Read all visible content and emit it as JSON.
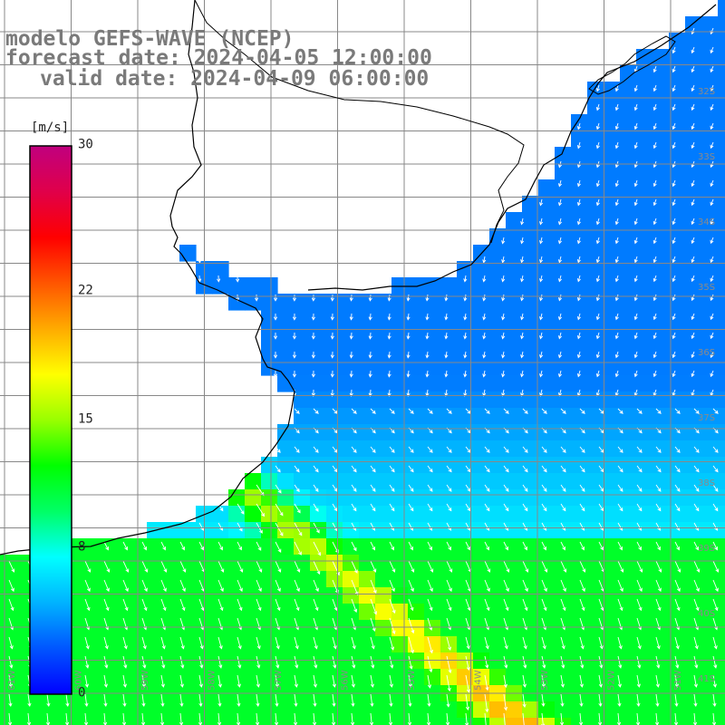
{
  "title": {
    "line1": "modelo GEFS-WAVE (NCEP)",
    "line2": "forecast date: 2024-04-05 12:00:00",
    "line3": "valid date: 2024-04-09 06:00:00"
  },
  "colorbar": {
    "unit": "[m/s]",
    "min": 0,
    "max": 30,
    "ticks": [
      {
        "value": 30,
        "label": "30"
      },
      {
        "value": 22,
        "label": "22"
      },
      {
        "value": 15,
        "label": "15"
      },
      {
        "value": 8,
        "label": "8"
      },
      {
        "value": 0,
        "label": "0"
      }
    ],
    "colors": [
      "#0000ff",
      "#0055ff",
      "#00b3ff",
      "#00ffff",
      "#00ff66",
      "#00ff00",
      "#99ff00",
      "#ffff00",
      "#ffaa00",
      "#ff5500",
      "#ff0000",
      "#e0004a",
      "#c0007f"
    ]
  },
  "map": {
    "grid_color": "#888888",
    "coast_color": "#000000",
    "land_color": "#ffffff",
    "vector_color": "#ffffff",
    "lat_labels": [
      "32S",
      "33S",
      "34S",
      "35S",
      "36S",
      "37S",
      "38S",
      "39S",
      "40S",
      "41S"
    ],
    "lon_labels": [
      "61W",
      "60W",
      "59W",
      "58W",
      "57W",
      "56W",
      "55W",
      "54W",
      "53W",
      "52W",
      "51W"
    ]
  }
}
